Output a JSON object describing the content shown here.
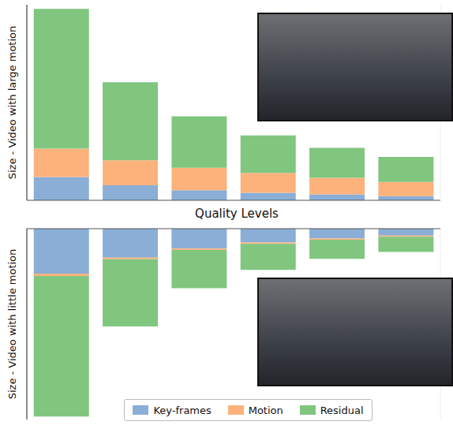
{
  "chart_data": [
    {
      "type": "bar",
      "stacked": true,
      "tick_labels": false,
      "grid": true,
      "y_label": "Size - Video with large motion",
      "x_label": "Quality Levels",
      "categories": [
        null,
        null,
        null,
        null,
        null,
        null
      ],
      "ylim": [
        0,
        235
      ],
      "yticks": [],
      "series": [
        {
          "name": "Key-frames",
          "color": "#8aaed6",
          "values": [
            28,
            18,
            12,
            9,
            7,
            5
          ]
        },
        {
          "name": "Motion",
          "color": "#fdb27c",
          "values": [
            34,
            30,
            27,
            24,
            20,
            17
          ]
        },
        {
          "name": "Residual",
          "color": "#80c67f",
          "values": [
            168,
            94,
            62,
            45,
            36,
            30
          ]
        }
      ]
    },
    {
      "type": "bar",
      "stacked": true,
      "tick_labels": false,
      "grid": true,
      "legend": "bottom",
      "y_label": "Size - Video with little motion",
      "categories": [
        null,
        null,
        null,
        null,
        null,
        null
      ],
      "ylim": [
        0,
        250
      ],
      "yticks": [],
      "series": [
        {
          "name": "Key-frames",
          "color": "#8aaed6",
          "values": [
            59,
            38,
            26,
            18,
            13,
            9
          ]
        },
        {
          "name": "Motion",
          "color": "#fdb27c",
          "values": [
            3,
            2,
            2,
            2,
            1.5,
            1.5
          ]
        },
        {
          "name": "Residual",
          "color": "#80c67f",
          "values": [
            184,
            88,
            50,
            34,
            25,
            20
          ]
        }
      ]
    }
  ]
}
